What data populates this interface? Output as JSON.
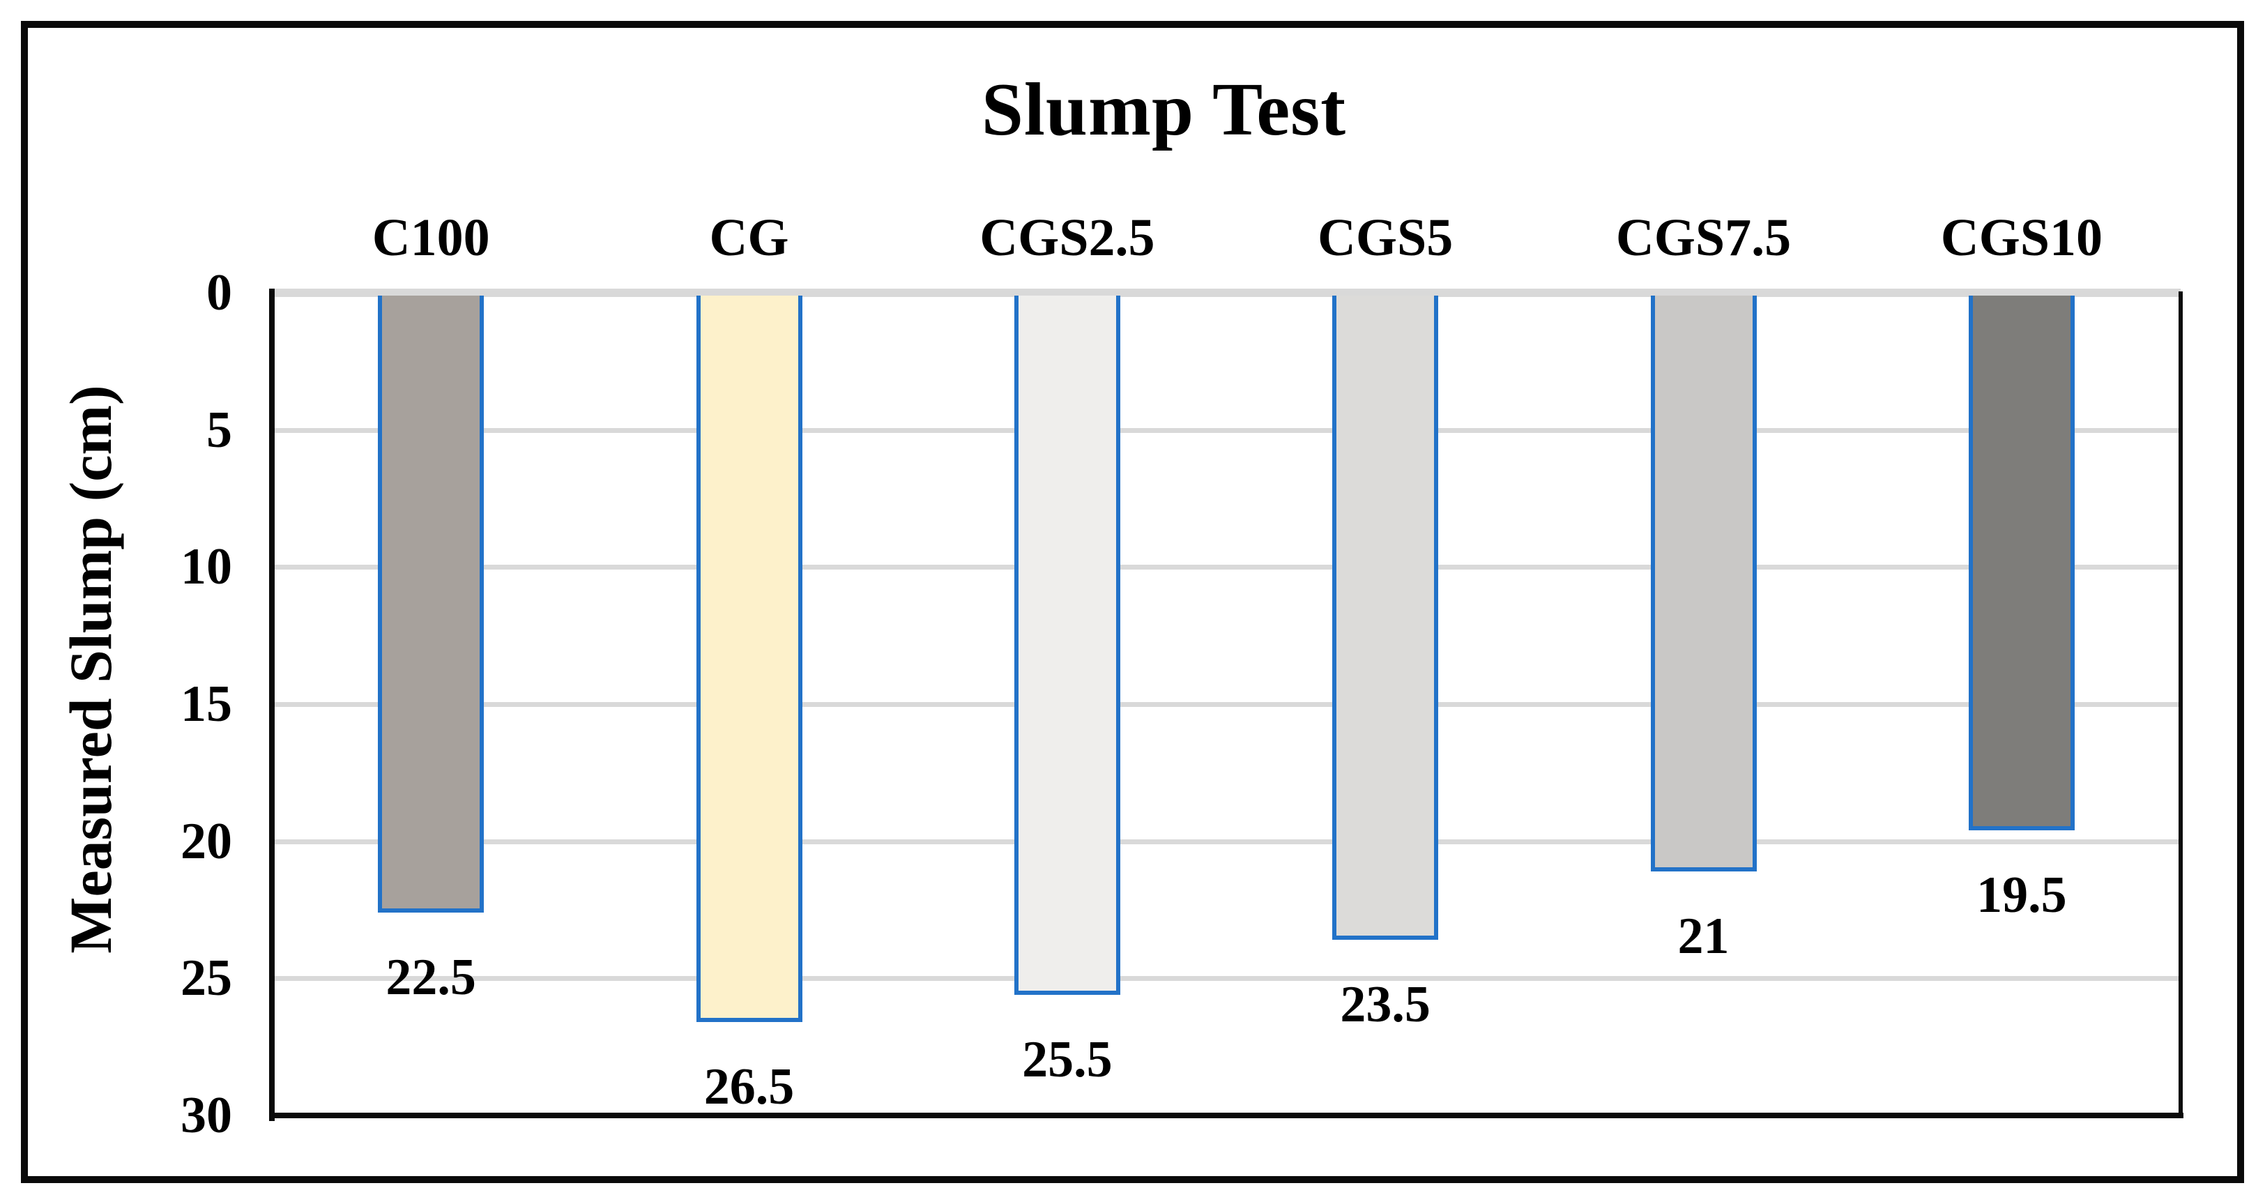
{
  "chart_data": {
    "type": "bar",
    "title": "Slump Test",
    "xlabel": "",
    "ylabel": "Measured Slump (cm)",
    "categories": [
      "C100",
      "CG",
      "CGS2.5",
      "CGS5",
      "CGS7.5",
      "CGS10"
    ],
    "values": [
      22.5,
      26.5,
      25.5,
      23.5,
      21,
      19.5
    ],
    "data_labels": [
      "22.5",
      "26.5",
      "25.5",
      "23.5",
      "21",
      "19.5"
    ],
    "y_ticks": [
      0,
      5,
      10,
      15,
      20,
      25,
      30
    ],
    "ylim": [
      0,
      30
    ],
    "y_axis_inverted": true,
    "bars_hang_from_zero_line": true,
    "grid": "horizontal",
    "legend_position": "none",
    "colors": {
      "bar_fills": [
        "#a7a19c",
        "#fdf1cb",
        "#efeeec",
        "#dcdbd9",
        "#c9c8c6",
        "#7e7d7a"
      ],
      "bar_border": "#2272c8",
      "gridline": "#d9d9d9",
      "axis": "#0a0a0a",
      "text": "#000000",
      "background": "#ffffff"
    }
  }
}
